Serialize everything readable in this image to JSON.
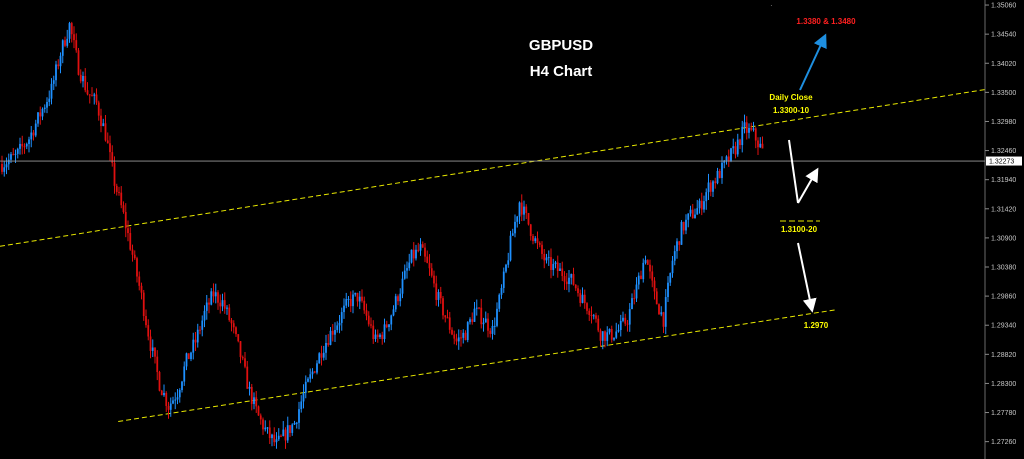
{
  "chart_data": {
    "type": "candlestick",
    "title": "GBPUSD",
    "subtitle": "H4 Chart",
    "current_price": "1.32273",
    "ylim": [
      1.2695,
      1.3515
    ],
    "y_ticks": [
      "1.35060",
      "1.34540",
      "1.34020",
      "1.33500",
      "1.32980",
      "1.32460",
      "1.31940",
      "1.31420",
      "1.30900",
      "1.30380",
      "1.29860",
      "1.29340",
      "1.28820",
      "1.28300",
      "1.27780",
      "1.27260"
    ],
    "annotations": [
      {
        "text": "1.3380 & 1.3480",
        "color": "#ff2020"
      },
      {
        "text": "Daily Close",
        "color": "#ffff00"
      },
      {
        "text": "1.3300-10",
        "color": "#ffff00"
      },
      {
        "text": "1.3100-20",
        "color": "#ffff00"
      },
      {
        "text": "1.2970",
        "color": "#ffff00"
      }
    ],
    "channel": {
      "upper": {
        "from": [
          0,
          1.3075
        ],
        "to": [
          1.0,
          1.3355
        ]
      },
      "lower": {
        "from": [
          0.12,
          1.2762
        ],
        "to": [
          0.85,
          1.2962
        ]
      }
    },
    "colors": {
      "bull": "#1e90ff",
      "bear": "#e01010",
      "channel": "#e8e800",
      "arrow_target": "#1e8fe0",
      "arrow": "#ffffff",
      "price_line": "#9a9a9a"
    },
    "anchors": [
      [
        0,
        1.3222
      ],
      [
        6,
        1.3235
      ],
      [
        12,
        1.3268
      ],
      [
        18,
        1.332
      ],
      [
        22,
        1.3355
      ],
      [
        26,
        1.342
      ],
      [
        30,
        1.347
      ],
      [
        34,
        1.3395
      ],
      [
        38,
        1.335
      ],
      [
        42,
        1.333
      ],
      [
        46,
        1.3275
      ],
      [
        50,
        1.319
      ],
      [
        54,
        1.313
      ],
      [
        58,
        1.306
      ],
      [
        62,
        1.2985
      ],
      [
        66,
        1.29
      ],
      [
        70,
        1.283
      ],
      [
        74,
        1.279
      ],
      [
        78,
        1.2815
      ],
      [
        82,
        1.287
      ],
      [
        86,
        1.2905
      ],
      [
        90,
        1.2955
      ],
      [
        94,
        1.299
      ],
      [
        98,
        1.2975
      ],
      [
        102,
        1.2935
      ],
      [
        106,
        1.288
      ],
      [
        110,
        1.2815
      ],
      [
        114,
        1.277
      ],
      [
        118,
        1.274
      ],
      [
        122,
        1.272
      ],
      [
        126,
        1.274
      ],
      [
        130,
        1.276
      ],
      [
        134,
        1.281
      ],
      [
        138,
        1.285
      ],
      [
        142,
        1.289
      ],
      [
        146,
        1.292
      ],
      [
        150,
        1.2945
      ],
      [
        154,
        1.2975
      ],
      [
        158,
        1.2985
      ],
      [
        162,
        1.295
      ],
      [
        166,
        1.2905
      ],
      [
        170,
        1.2925
      ],
      [
        174,
        1.2965
      ],
      [
        178,
        1.301
      ],
      [
        182,
        1.3055
      ],
      [
        186,
        1.307
      ],
      [
        190,
        1.303
      ],
      [
        194,
        1.298
      ],
      [
        198,
        1.294
      ],
      [
        202,
        1.2905
      ],
      [
        206,
        1.292
      ],
      [
        210,
        1.296
      ],
      [
        214,
        1.2945
      ],
      [
        218,
        1.2925
      ],
      [
        222,
        1.2995
      ],
      [
        226,
        1.308
      ],
      [
        230,
        1.3155
      ],
      [
        234,
        1.3115
      ],
      [
        238,
        1.3075
      ],
      [
        242,
        1.3045
      ],
      [
        246,
        1.3035
      ],
      [
        250,
        1.3025
      ],
      [
        254,
        1.301
      ],
      [
        258,
        1.298
      ],
      [
        262,
        1.296
      ],
      [
        266,
        1.292
      ],
      [
        270,
        1.2915
      ],
      [
        274,
        1.2925
      ],
      [
        278,
        1.2945
      ],
      [
        282,
        1.3
      ],
      [
        286,
        1.306
      ],
      [
        290,
        1.2985
      ],
      [
        294,
        1.2945
      ],
      [
        298,
        1.305
      ],
      [
        302,
        1.3105
      ],
      [
        306,
        1.313
      ],
      [
        310,
        1.3145
      ],
      [
        314,
        1.318
      ],
      [
        318,
        1.32
      ],
      [
        322,
        1.3225
      ],
      [
        326,
        1.325
      ],
      [
        330,
        1.3285
      ],
      [
        334,
        1.3275
      ],
      [
        338,
        1.3245
      ]
    ]
  }
}
